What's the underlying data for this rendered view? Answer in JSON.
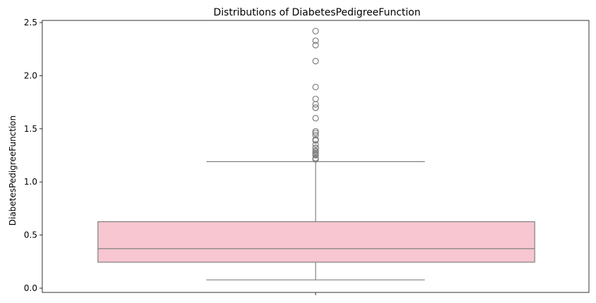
{
  "chart_data": {
    "type": "box",
    "title": "Distributions of DiabetesPedigreeFunction",
    "xlabel": "",
    "ylabel": "DiabetesPedigreeFunction",
    "ylim": [
      -0.04,
      2.52
    ],
    "yticks": [
      0.0,
      0.5,
      1.0,
      1.5,
      2.0,
      2.5
    ],
    "ytick_labels": [
      "0.0",
      "0.5",
      "1.0",
      "1.5",
      "2.0",
      "2.5"
    ],
    "grid": false,
    "box": {
      "q1": 0.245,
      "median": 0.372,
      "q3": 0.626,
      "whisker_low": 0.078,
      "whisker_high": 1.191,
      "fill_color": "#f7c6d0",
      "line_color": "#808080"
    },
    "outliers": [
      1.213,
      1.222,
      1.224,
      1.251,
      1.258,
      1.268,
      1.282,
      1.292,
      1.318,
      1.321,
      1.353,
      1.39,
      1.394,
      1.4,
      1.441,
      1.461,
      1.476,
      1.6,
      1.698,
      1.699,
      1.731,
      1.781,
      1.893,
      2.137,
      2.288,
      2.329,
      2.42
    ]
  }
}
